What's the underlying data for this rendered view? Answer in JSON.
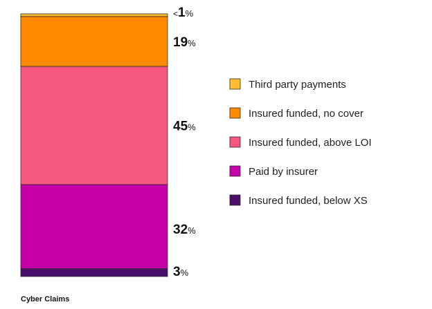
{
  "chart_data": {
    "type": "bar",
    "stacked": true,
    "normalized_to_percent": true,
    "categories": [
      "Cyber Claims"
    ],
    "series": [
      {
        "name": "Insured funded, below XS",
        "values": [
          3
        ],
        "label": "3",
        "color": "#4a0e6b"
      },
      {
        "name": "Paid by insurer",
        "values": [
          32
        ],
        "label": "32",
        "color": "#c800aa"
      },
      {
        "name": "Insured funded, above LOI",
        "values": [
          45
        ],
        "label": "45",
        "color": "#f5577f"
      },
      {
        "name": "Insured funded, no cover",
        "values": [
          19
        ],
        "label": "19",
        "color": "#ff8a00"
      },
      {
        "name": "Third party payments",
        "values": [
          1
        ],
        "label": "1",
        "label_prefix": "<",
        "color": "#ffbe2e"
      }
    ],
    "legend_order": [
      "Third party payments",
      "Insured funded, no cover",
      "Insured funded, above LOI",
      "Paid by insurer",
      "Insured funded, below XS"
    ],
    "percent_suffix": "%",
    "title": "",
    "xlabel": "",
    "ylabel": "",
    "ylim": [
      0,
      100
    ],
    "grid": false,
    "legend_position": "right"
  }
}
